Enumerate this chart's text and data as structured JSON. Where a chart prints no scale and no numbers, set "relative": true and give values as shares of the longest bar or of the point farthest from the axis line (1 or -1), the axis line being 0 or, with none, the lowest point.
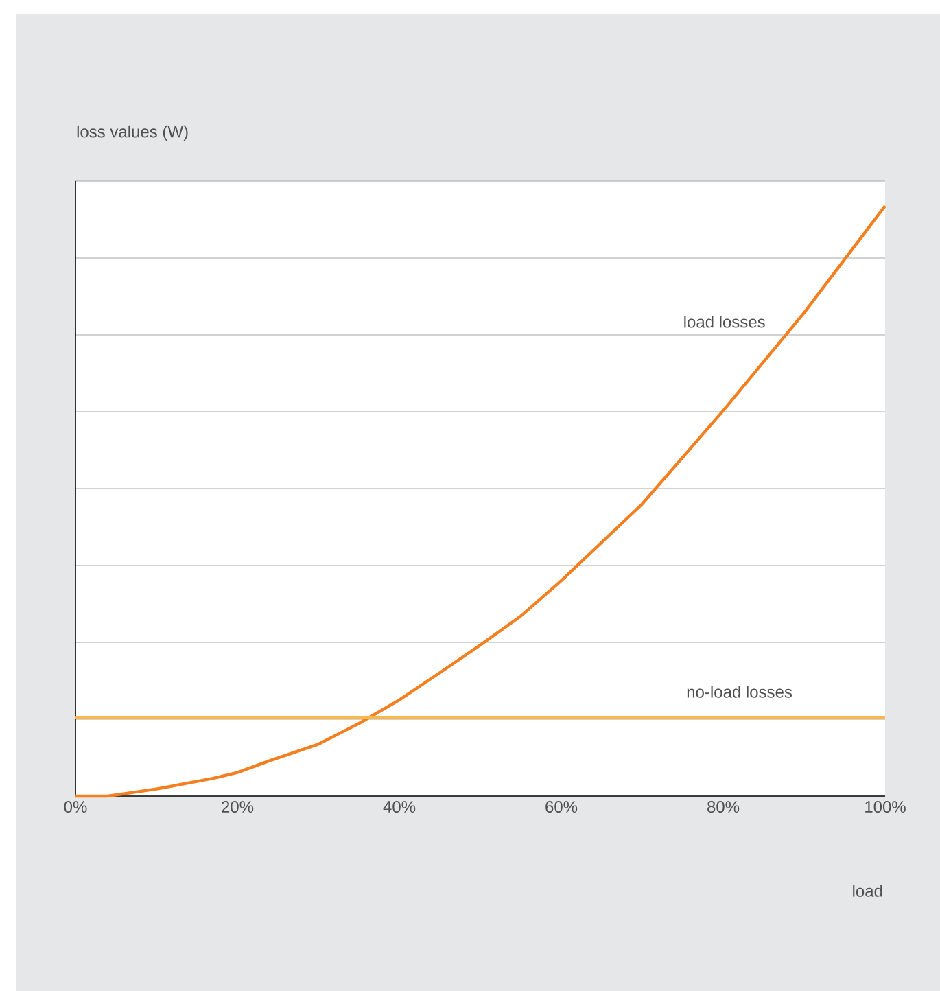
{
  "chart_data": {
    "type": "line",
    "relative": true,
    "grid": "y",
    "ylabel": "loss values (W)",
    "xlabel": "load",
    "x": [
      0,
      4,
      10,
      17,
      20,
      24,
      30,
      35,
      40,
      45,
      50,
      55,
      60,
      70,
      80,
      90,
      100
    ],
    "xlim": [
      0,
      100
    ],
    "xticks": [
      {
        "value": 0,
        "label": "0%"
      },
      {
        "value": 20,
        "label": "20%"
      },
      {
        "value": 40,
        "label": "40%"
      },
      {
        "value": 60,
        "label": "60%"
      },
      {
        "value": 80,
        "label": "80%"
      },
      {
        "value": 100,
        "label": "100%"
      }
    ],
    "series": [
      {
        "name": "load losses",
        "color": "#f47f20",
        "values": [
          0,
          0,
          0.012,
          0.03,
          0.04,
          0.06,
          0.088,
          0.123,
          0.163,
          0.209,
          0.256,
          0.305,
          0.365,
          0.495,
          0.653,
          0.819,
          1
        ]
      },
      {
        "name": "no-load losses",
        "color": "#fbb84a",
        "values": [
          0.133,
          0.133,
          0.133,
          0.133,
          0.133,
          0.133,
          0.133,
          0.133,
          0.133,
          0.133,
          0.133,
          0.133,
          0.133,
          0.133,
          0.133,
          0.133,
          0.133
        ]
      }
    ]
  }
}
